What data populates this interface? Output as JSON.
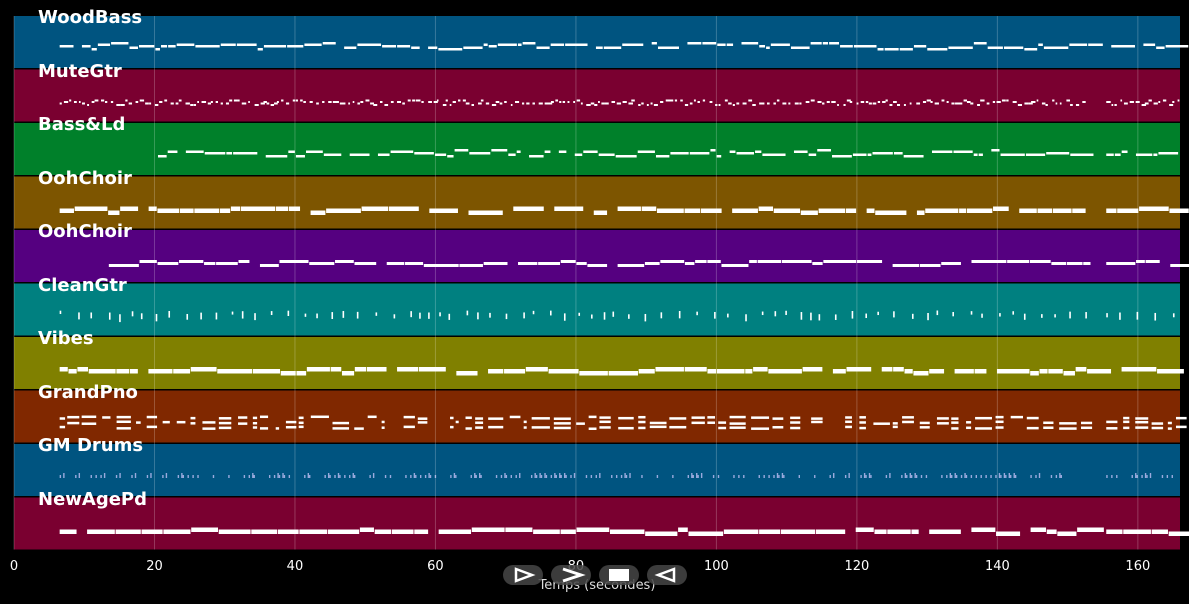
{
  "tracks": [
    {
      "name": "WoodBass",
      "color": "#005480",
      "style": "line"
    },
    {
      "name": "MuteGtr",
      "color": "#7a0030",
      "style": "dots"
    },
    {
      "name": "Bass&Ld",
      "color": "#00802a",
      "style": "line"
    },
    {
      "name": "OohChoir",
      "color": "#7d5500",
      "style": "thick"
    },
    {
      "name": "OohChoir",
      "color": "#550080",
      "style": "thick"
    },
    {
      "name": "CleanGtr",
      "color": "#008080",
      "style": "vert"
    },
    {
      "name": "Vibes",
      "color": "#808000",
      "style": "thick"
    },
    {
      "name": "GrandPno",
      "color": "#802800",
      "style": "chords"
    },
    {
      "name": "GM Drums",
      "color": "#005480",
      "style": "drums"
    },
    {
      "name": "NewAgePd",
      "color": "#7a0030",
      "style": "thick"
    }
  ],
  "x_axis": {
    "min": 0,
    "max": 166,
    "ticks": [
      "0",
      "20",
      "40",
      "60",
      "80",
      "100",
      "120",
      "140",
      "160"
    ],
    "label": "Temps (secondes)"
  },
  "controls": [
    {
      "name": "play-button",
      "icon": "play-icon"
    },
    {
      "name": "forward-button",
      "icon": "fast-forward-icon"
    },
    {
      "name": "stop-button",
      "icon": "stop-icon"
    },
    {
      "name": "rewind-button",
      "icon": "rewind-icon"
    }
  ]
}
